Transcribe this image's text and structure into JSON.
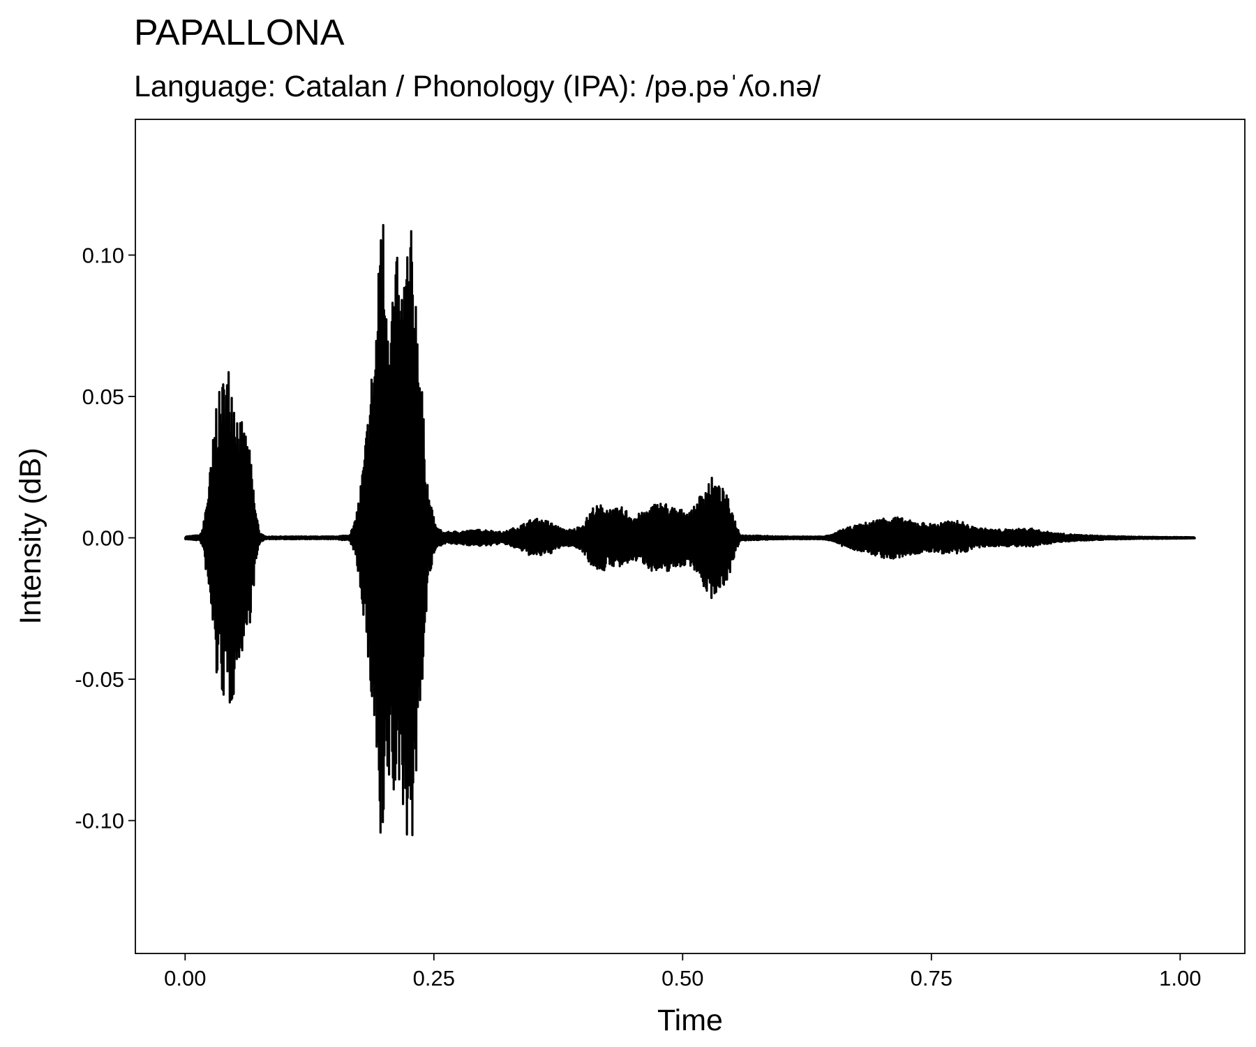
{
  "chart_data": {
    "type": "line",
    "title": "PAPALLONA",
    "subtitle": "Language: Catalan / Phonology (IPA): /pə.pəˈʎo.nə/",
    "xlabel": "Time",
    "ylabel": "Intensity (dB)",
    "xlim": [
      -0.05,
      1.065
    ],
    "ylim": [
      -0.147,
      0.148
    ],
    "x_ticks": [
      {
        "value": 0.0,
        "label": "0.00"
      },
      {
        "value": 0.25,
        "label": "0.25"
      },
      {
        "value": 0.5,
        "label": "0.50"
      },
      {
        "value": 0.75,
        "label": "0.75"
      },
      {
        "value": 1.0,
        "label": "1.00"
      }
    ],
    "y_ticks": [
      {
        "value": 0.1,
        "label": "0.10"
      },
      {
        "value": 0.05,
        "label": "0.05"
      },
      {
        "value": 0.0,
        "label": "0.00"
      },
      {
        "value": -0.05,
        "label": "-0.05"
      },
      {
        "value": -0.1,
        "label": "-0.10"
      }
    ],
    "grid": false,
    "line_color": "#000000",
    "x_range": [
      0.0,
      1.015
    ],
    "envelope": [
      [
        0.0,
        0.0005
      ],
      [
        0.015,
        0.001
      ],
      [
        0.018,
        0.004
      ],
      [
        0.022,
        0.015
      ],
      [
        0.027,
        0.03
      ],
      [
        0.031,
        0.05
      ],
      [
        0.035,
        0.052
      ],
      [
        0.04,
        0.06
      ],
      [
        0.044,
        0.062
      ],
      [
        0.048,
        0.058
      ],
      [
        0.053,
        0.045
      ],
      [
        0.058,
        0.04
      ],
      [
        0.063,
        0.036
      ],
      [
        0.067,
        0.025
      ],
      [
        0.071,
        0.01
      ],
      [
        0.075,
        0.002
      ],
      [
        0.08,
        0.0005
      ],
      [
        0.15,
        0.0005
      ],
      [
        0.165,
        0.001
      ],
      [
        0.17,
        0.005
      ],
      [
        0.175,
        0.015
      ],
      [
        0.18,
        0.03
      ],
      [
        0.185,
        0.05
      ],
      [
        0.19,
        0.07
      ],
      [
        0.194,
        0.09
      ],
      [
        0.197,
        0.134
      ],
      [
        0.2,
        0.11
      ],
      [
        0.205,
        0.09
      ],
      [
        0.21,
        0.095
      ],
      [
        0.213,
        0.1
      ],
      [
        0.216,
        0.085
      ],
      [
        0.22,
        0.1
      ],
      [
        0.224,
        0.108
      ],
      [
        0.228,
        0.11
      ],
      [
        0.232,
        0.09
      ],
      [
        0.236,
        0.07
      ],
      [
        0.24,
        0.04
      ],
      [
        0.245,
        0.015
      ],
      [
        0.252,
        0.004
      ],
      [
        0.26,
        0.002
      ],
      [
        0.28,
        0.0025
      ],
      [
        0.3,
        0.003
      ],
      [
        0.32,
        0.002
      ],
      [
        0.34,
        0.005
      ],
      [
        0.35,
        0.007
      ],
      [
        0.365,
        0.006
      ],
      [
        0.38,
        0.003
      ],
      [
        0.39,
        0.003
      ],
      [
        0.4,
        0.005
      ],
      [
        0.41,
        0.011
      ],
      [
        0.42,
        0.012
      ],
      [
        0.43,
        0.01
      ],
      [
        0.44,
        0.011
      ],
      [
        0.45,
        0.008
      ],
      [
        0.46,
        0.009
      ],
      [
        0.47,
        0.012
      ],
      [
        0.48,
        0.013
      ],
      [
        0.49,
        0.011
      ],
      [
        0.5,
        0.01
      ],
      [
        0.51,
        0.01
      ],
      [
        0.52,
        0.017
      ],
      [
        0.528,
        0.022
      ],
      [
        0.535,
        0.019
      ],
      [
        0.542,
        0.017
      ],
      [
        0.548,
        0.012
      ],
      [
        0.553,
        0.006
      ],
      [
        0.558,
        0.001
      ],
      [
        0.6,
        0.0005
      ],
      [
        0.64,
        0.0005
      ],
      [
        0.65,
        0.001
      ],
      [
        0.66,
        0.003
      ],
      [
        0.68,
        0.005
      ],
      [
        0.7,
        0.007
      ],
      [
        0.71,
        0.008
      ],
      [
        0.72,
        0.007
      ],
      [
        0.73,
        0.006
      ],
      [
        0.75,
        0.005
      ],
      [
        0.77,
        0.006
      ],
      [
        0.78,
        0.006
      ],
      [
        0.79,
        0.004
      ],
      [
        0.81,
        0.003
      ],
      [
        0.83,
        0.003
      ],
      [
        0.85,
        0.0035
      ],
      [
        0.86,
        0.0025
      ],
      [
        0.88,
        0.0015
      ],
      [
        0.9,
        0.001
      ],
      [
        0.93,
        0.0006
      ],
      [
        0.96,
        0.0004
      ],
      [
        1.0,
        0.0003
      ],
      [
        1.015,
        0.0002
      ]
    ]
  }
}
